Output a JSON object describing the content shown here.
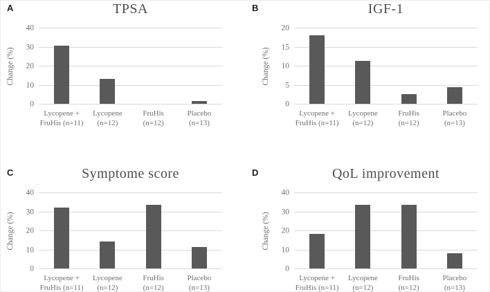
{
  "figure_colors": {
    "bar": "#595959",
    "gridline": "#d9d9d9",
    "tick_text": "#6e6e6e",
    "title_text": "#4d4d4d",
    "panel_letter": "#1c1c1c",
    "background": "#ffffff"
  },
  "chart_data": [
    {
      "type": "bar",
      "panel_label": "A",
      "title": "TPSA",
      "ylabel": "Change (%)",
      "ylim": [
        0,
        40
      ],
      "yticks": [
        0,
        10,
        20,
        30,
        40
      ],
      "grid": true,
      "legend": "none",
      "categories": [
        [
          "Lycopene +",
          "FruHis (n=11)"
        ],
        [
          "Lycopene",
          "(n=12)"
        ],
        [
          "FruHis",
          "(n=12)"
        ],
        [
          "Placebo",
          "(n=13)"
        ]
      ],
      "values": [
        30.5,
        13,
        0,
        1.5
      ]
    },
    {
      "type": "bar",
      "panel_label": "B",
      "title": "IGF-1",
      "ylabel": "Change (%)",
      "ylim": [
        0,
        20
      ],
      "yticks": [
        0,
        5,
        10,
        15,
        20
      ],
      "grid": true,
      "legend": "none",
      "categories": [
        [
          "Lycopene +",
          "FruHis (n=11)"
        ],
        [
          "Lycopene",
          "(n=12)"
        ],
        [
          "FruHis",
          "(n=12)"
        ],
        [
          "Placebo",
          "(n=13)"
        ]
      ],
      "values": [
        18,
        11.3,
        2.5,
        4.4
      ]
    },
    {
      "type": "bar",
      "panel_label": "C",
      "title": "Symptome score",
      "ylabel": "Change (%)",
      "ylim": [
        0,
        40
      ],
      "yticks": [
        0,
        10,
        20,
        30,
        40
      ],
      "grid": true,
      "legend": "none",
      "categories": [
        [
          "Lycopene +",
          "FruHis (n=11)"
        ],
        [
          "Lycopene",
          "(n=12)"
        ],
        [
          "FruHis",
          "(n=12)"
        ],
        [
          "Placebo",
          "(n=13)"
        ]
      ],
      "values": [
        32,
        14.3,
        33.5,
        11.2
      ]
    },
    {
      "type": "bar",
      "panel_label": "D",
      "title": "QoL improvement",
      "ylabel": "Change (%)",
      "ylim": [
        0,
        40
      ],
      "yticks": [
        0,
        10,
        20,
        30,
        40
      ],
      "grid": true,
      "legend": "none",
      "categories": [
        [
          "Lycopene +",
          "FruHis (n=11)"
        ],
        [
          "Lycopene",
          "(n=12)"
        ],
        [
          "FruHis",
          "(n=12)"
        ],
        [
          "Placebo",
          "(n=13)"
        ]
      ],
      "values": [
        18.2,
        33.3,
        33.3,
        8
      ]
    }
  ]
}
